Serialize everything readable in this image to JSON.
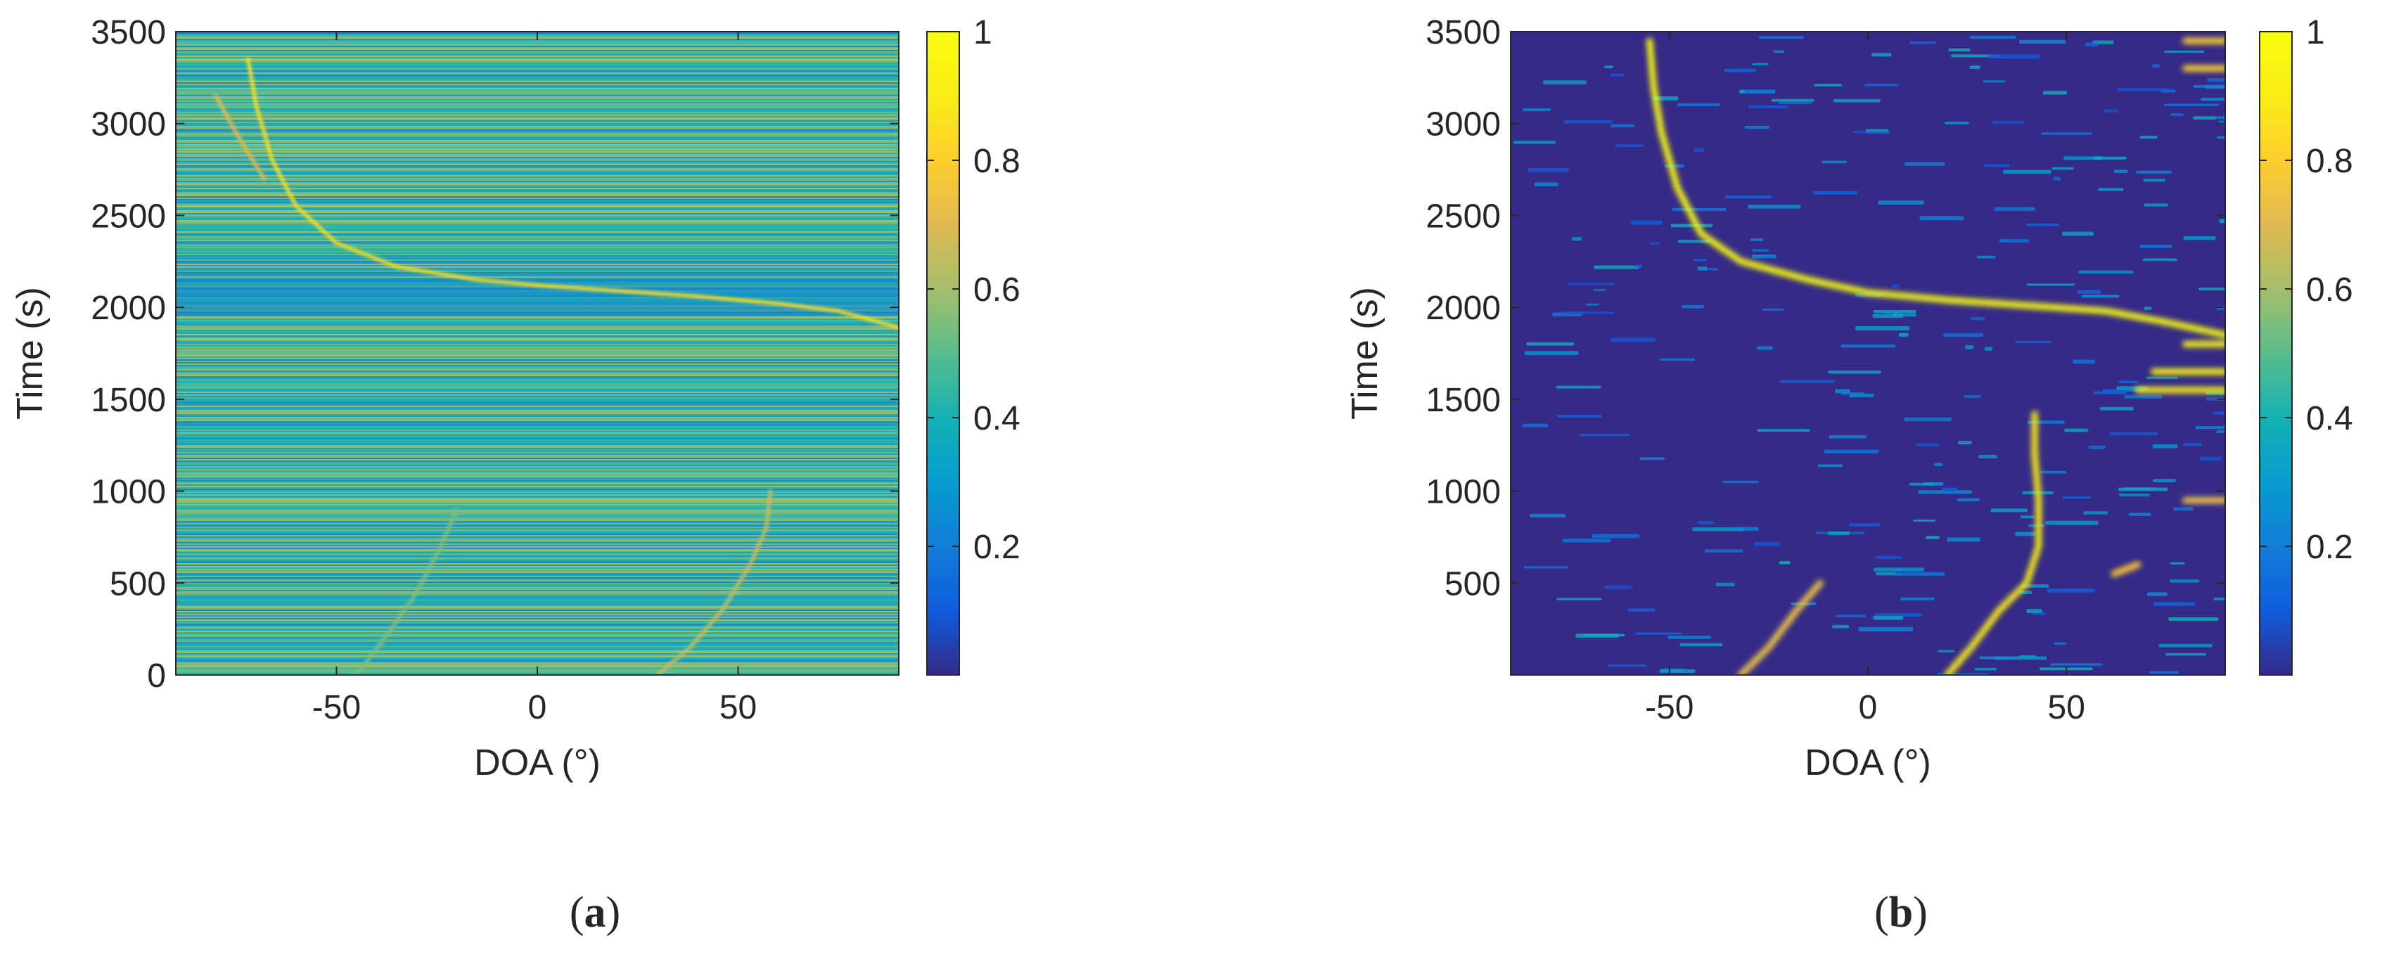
{
  "chart_data": [
    {
      "type": "heatmap",
      "panel_label": "a",
      "xlabel": "DOA (°)",
      "ylabel": "Time (s)",
      "xlim": [
        -90,
        90
      ],
      "ylim": [
        0,
        3500
      ],
      "xticks": [
        -50,
        0,
        50
      ],
      "yticks": [
        0,
        500,
        1000,
        1500,
        2000,
        2500,
        3000,
        3500
      ],
      "colorbar": {
        "ticks": [
          0.2,
          0.4,
          0.6,
          0.8,
          1
        ],
        "range": [
          0,
          1
        ],
        "colormap": "parula"
      },
      "background_level": 0.45,
      "noise_level": 0.35,
      "tracks": [
        {
          "intensity": 0.85,
          "points": [
            [
              -72,
              3350
            ],
            [
              -70,
              3100
            ],
            [
              -66,
              2800
            ],
            [
              -60,
              2550
            ],
            [
              -50,
              2350
            ],
            [
              -35,
              2220
            ],
            [
              -15,
              2150
            ],
            [
              0,
              2120
            ],
            [
              20,
              2090
            ],
            [
              40,
              2060
            ],
            [
              60,
              2020
            ],
            [
              75,
              1980
            ],
            [
              90,
              1890
            ]
          ]
        },
        {
          "intensity": 0.7,
          "points": [
            [
              -80,
              3150
            ],
            [
              -75,
              2950
            ],
            [
              -68,
              2700
            ]
          ]
        },
        {
          "intensity": 0.65,
          "points": [
            [
              30,
              0
            ],
            [
              38,
              150
            ],
            [
              46,
              350
            ],
            [
              53,
              600
            ],
            [
              57,
              800
            ],
            [
              58,
              1000
            ]
          ]
        },
        {
          "intensity": 0.55,
          "points": [
            [
              -45,
              0
            ],
            [
              -38,
              200
            ],
            [
              -30,
              450
            ],
            [
              -24,
              700
            ],
            [
              -20,
              900
            ]
          ]
        }
      ]
    },
    {
      "type": "heatmap",
      "panel_label": "b",
      "xlabel": "DOA (°)",
      "ylabel": "Time (s)",
      "xlim": [
        -90,
        90
      ],
      "ylim": [
        0,
        3500
      ],
      "xticks": [
        -50,
        0,
        50
      ],
      "yticks": [
        500,
        1000,
        1500,
        2000,
        2500,
        3000,
        3500
      ],
      "colorbar": {
        "ticks": [
          0.2,
          0.4,
          0.6,
          0.8,
          1
        ],
        "range": [
          0,
          1
        ],
        "colormap": "parula"
      },
      "background_level": 0.0,
      "noise_level": 0.12,
      "tracks": [
        {
          "intensity": 1.0,
          "points": [
            [
              -55,
              3450
            ],
            [
              -54,
              3200
            ],
            [
              -52,
              2950
            ],
            [
              -48,
              2650
            ],
            [
              -42,
              2400
            ],
            [
              -32,
              2250
            ],
            [
              -15,
              2150
            ],
            [
              0,
              2080
            ],
            [
              20,
              2040
            ],
            [
              40,
              2010
            ],
            [
              60,
              1980
            ],
            [
              75,
              1920
            ],
            [
              90,
              1850
            ]
          ]
        },
        {
          "intensity": 0.9,
          "points": [
            [
              20,
              0
            ],
            [
              26,
              150
            ],
            [
              33,
              350
            ],
            [
              40,
              500
            ],
            [
              43,
              700
            ],
            [
              43,
              950
            ],
            [
              42,
              1200
            ],
            [
              42,
              1420
            ]
          ]
        },
        {
          "intensity": 0.75,
          "points": [
            [
              -32,
              0
            ],
            [
              -25,
              150
            ],
            [
              -18,
              350
            ],
            [
              -12,
              500
            ]
          ]
        },
        {
          "intensity": 0.95,
          "points": [
            [
              80,
              1800
            ],
            [
              90,
              1800
            ]
          ]
        },
        {
          "intensity": 0.95,
          "points": [
            [
              72,
              1650
            ],
            [
              90,
              1650
            ]
          ]
        },
        {
          "intensity": 0.9,
          "points": [
            [
              68,
              1550
            ],
            [
              90,
              1550
            ]
          ]
        },
        {
          "intensity": 0.8,
          "points": [
            [
              80,
              3450
            ],
            [
              90,
              3450
            ]
          ]
        },
        {
          "intensity": 0.8,
          "points": [
            [
              80,
              3300
            ],
            [
              90,
              3300
            ]
          ]
        },
        {
          "intensity": 0.75,
          "points": [
            [
              80,
              950
            ],
            [
              90,
              950
            ]
          ]
        },
        {
          "intensity": 0.8,
          "points": [
            [
              62,
              550
            ],
            [
              68,
              600
            ]
          ]
        }
      ]
    }
  ]
}
